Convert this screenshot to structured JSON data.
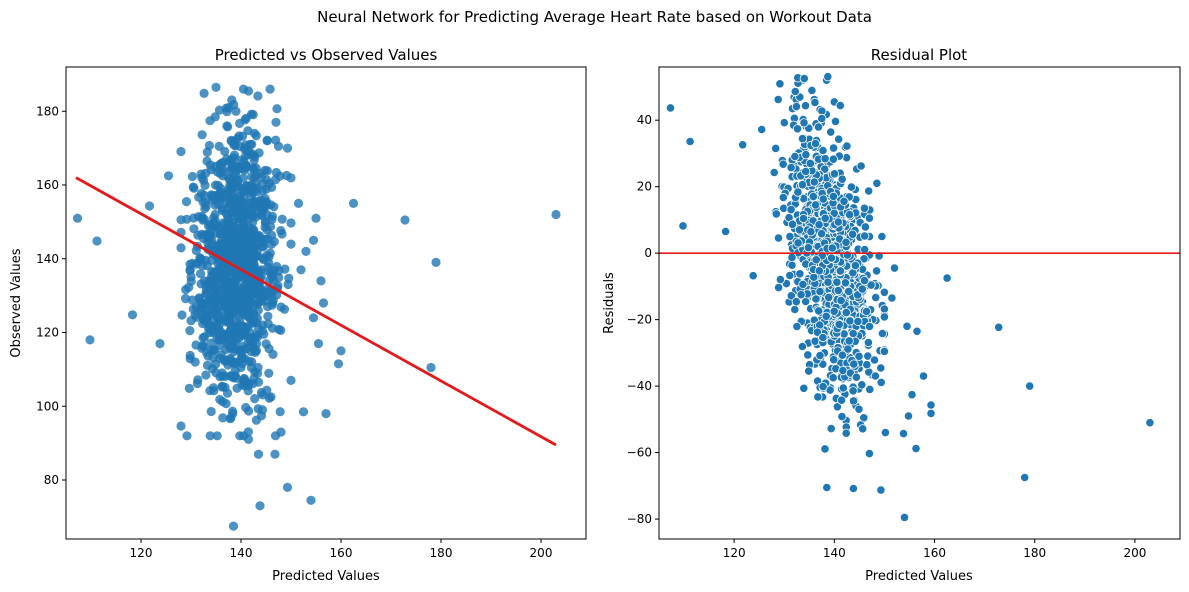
{
  "figure": {
    "title": "Neural Network for Predicting Average Heart Rate based on Workout Data"
  },
  "chart_data": [
    {
      "type": "scatter",
      "title": "Predicted vs Observed Values",
      "xlabel": "Predicted Values",
      "ylabel": "Observed Values",
      "xlim": [
        105,
        209
      ],
      "ylim": [
        64,
        192
      ],
      "xticks": [
        120,
        140,
        160,
        180,
        200
      ],
      "yticks": [
        80,
        100,
        120,
        140,
        160,
        180
      ],
      "grid": false,
      "point_color": "#1f77b4",
      "point_alpha": 0.8,
      "fit_line": {
        "color": "#e31a1c",
        "x": [
          107,
          203
        ],
        "y": [
          162,
          89.5
        ]
      },
      "cluster": {
        "center_x": 139,
        "std_x": 4.2,
        "center_y": 138,
        "std_y": 18,
        "count": 1100,
        "x_range": [
          128,
          150
        ],
        "y_range": [
          92,
          186
        ]
      },
      "points": [
        [
          107.3,
          151
        ],
        [
          109.8,
          118
        ],
        [
          111.2,
          144.8
        ],
        [
          118.3,
          124.8
        ],
        [
          121.7,
          154.3
        ],
        [
          123.8,
          117
        ],
        [
          125.5,
          162.5
        ],
        [
          162.5,
          155
        ],
        [
          172.8,
          150.5
        ],
        [
          178,
          110.5
        ],
        [
          179,
          139
        ],
        [
          203,
          152
        ],
        [
          138.5,
          67.5
        ],
        [
          143.8,
          73
        ],
        [
          149.3,
          78
        ],
        [
          154,
          74.5
        ],
        [
          141.5,
          91
        ],
        [
          140.5,
          92
        ],
        [
          143.5,
          87
        ],
        [
          146.8,
          87
        ],
        [
          152.5,
          98.5
        ],
        [
          157,
          98
        ],
        [
          148,
          93
        ],
        [
          150,
          107
        ],
        [
          144.3,
          99
        ],
        [
          135,
          186.5
        ],
        [
          140.5,
          186
        ],
        [
          141.5,
          185.5
        ],
        [
          137.5,
          181
        ],
        [
          139,
          180
        ],
        [
          149.3,
          170
        ],
        [
          147,
          177
        ],
        [
          151.5,
          155
        ],
        [
          154.5,
          145
        ],
        [
          155,
          151
        ],
        [
          160,
          115
        ],
        [
          159.5,
          111.5
        ],
        [
          156,
          134
        ],
        [
          156.5,
          128
        ],
        [
          154.5,
          124
        ],
        [
          155.5,
          117
        ],
        [
          152,
          137
        ],
        [
          153,
          142
        ]
      ]
    },
    {
      "type": "scatter",
      "title": "Residual Plot",
      "xlabel": "Predicted Values",
      "ylabel": "Residuals",
      "xlim": [
        105,
        209
      ],
      "ylim": [
        -86,
        56
      ],
      "xticks": [
        120,
        140,
        160,
        180,
        200
      ],
      "yticks": [
        -80,
        -60,
        -40,
        -20,
        0,
        20,
        40
      ],
      "grid": false,
      "point_color": "#1f77b4",
      "point_edge": "#ffffff",
      "hline": {
        "y": 0,
        "color": "#e31a1c"
      },
      "cluster": {
        "center_x": 139,
        "std_x": 4.2,
        "center_y": -1,
        "std_y": 17,
        "count": 1100,
        "x_range": [
          128,
          150
        ],
        "y_range": [
          -72,
          53
        ]
      },
      "points": [
        [
          107.3,
          43.7
        ],
        [
          109.8,
          8.2
        ],
        [
          111.2,
          33.6
        ],
        [
          118.3,
          6.5
        ],
        [
          121.7,
          32.6
        ],
        [
          123.8,
          -6.8
        ],
        [
          125.5,
          37.2
        ],
        [
          162.5,
          -7.5
        ],
        [
          172.8,
          -22.3
        ],
        [
          178,
          -67.5
        ],
        [
          179,
          -40
        ],
        [
          203,
          -51
        ],
        [
          138.5,
          -70.5
        ],
        [
          143.8,
          -70.8
        ],
        [
          149.3,
          -71.3
        ],
        [
          154,
          -79.5
        ],
        [
          147,
          -60.3
        ],
        [
          156.3,
          -58.8
        ],
        [
          150.2,
          -54
        ],
        [
          153.8,
          -54.3
        ],
        [
          154.8,
          -49
        ],
        [
          157.8,
          -37
        ],
        [
          159.3,
          -45.7
        ],
        [
          159.3,
          -48.2
        ],
        [
          155.5,
          -42.6
        ],
        [
          134,
          52.5
        ],
        [
          140,
          45.5
        ],
        [
          141.2,
          44.4
        ],
        [
          137.5,
          40.5
        ],
        [
          148.5,
          21
        ],
        [
          146,
          13.5
        ],
        [
          147,
          10.5
        ],
        [
          152,
          -4.5
        ],
        [
          151.5,
          -13.5
        ],
        [
          154.5,
          -22
        ],
        [
          156.5,
          -23.5
        ],
        [
          149.5,
          5
        ]
      ]
    }
  ]
}
